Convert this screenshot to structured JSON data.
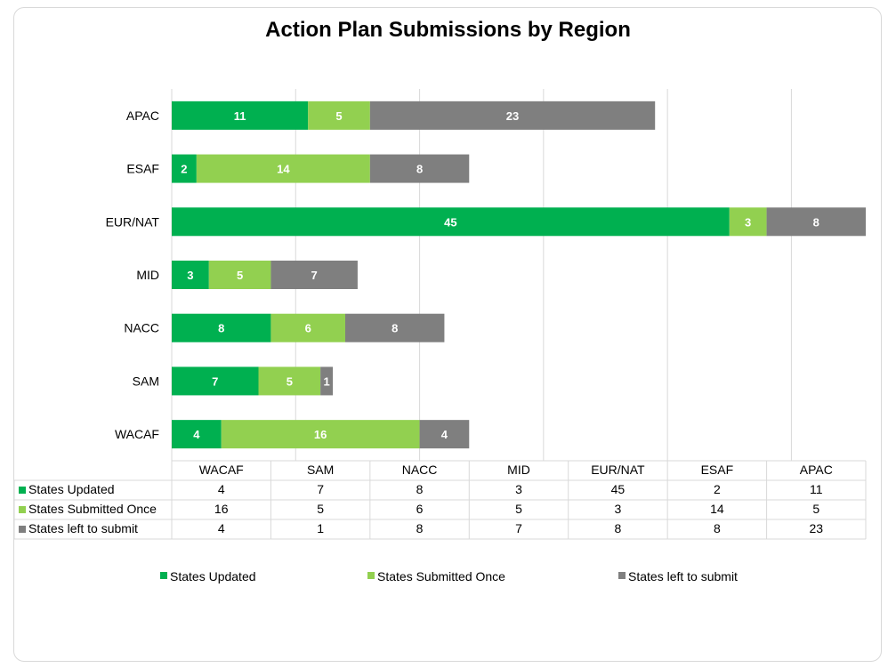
{
  "chart_data": {
    "type": "bar",
    "orientation": "horizontal",
    "stacked": true,
    "title": "Action Plan Submissions by Region",
    "categories": [
      "WACAF",
      "SAM",
      "NACC",
      "MID",
      "EUR/NAT",
      "ESAF",
      "APAC"
    ],
    "series": [
      {
        "name": "States Updated",
        "color": "#00b050",
        "values": [
          4,
          7,
          8,
          3,
          45,
          2,
          11
        ]
      },
      {
        "name": "States Submitted Once",
        "color": "#92d050",
        "values": [
          16,
          5,
          6,
          5,
          3,
          14,
          5
        ]
      },
      {
        "name": "States left to submit",
        "color": "#7f7f7f",
        "values": [
          4,
          1,
          8,
          7,
          8,
          8,
          23
        ]
      }
    ],
    "xlim": [
      0,
      56
    ],
    "grid": true,
    "data_table": true,
    "legend_position": "bottom"
  }
}
